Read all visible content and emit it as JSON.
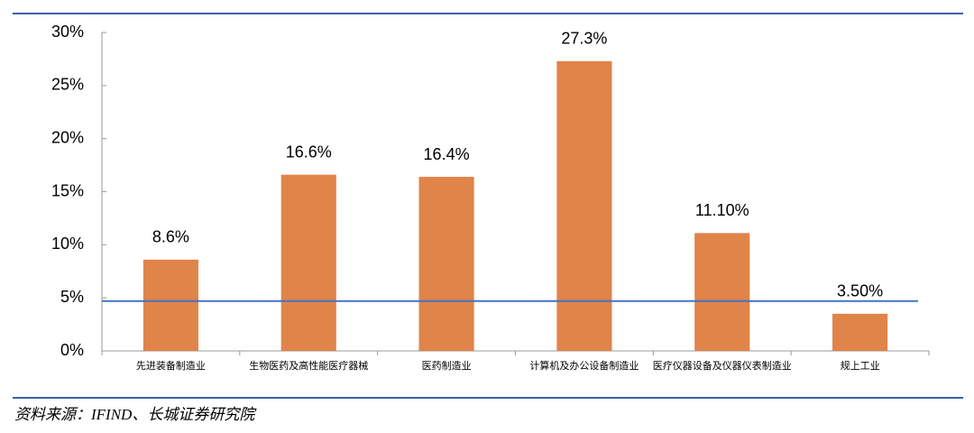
{
  "chart_data": {
    "type": "bar",
    "categories": [
      "先进装备制造业",
      "生物医药及高性能医疗器械",
      "医药制造业",
      "计算机及办公设备制造业",
      "医疗仪器设备及仪器仪表制造业",
      "规上工业"
    ],
    "values": [
      8.6,
      16.6,
      16.4,
      27.3,
      11.1,
      3.5
    ],
    "value_labels": [
      "8.6%",
      "16.6%",
      "16.4%",
      "27.3%",
      "11.10%",
      "3.50%"
    ],
    "color": "#e0844a",
    "hline": 4.7,
    "hline_color": "#4472c4",
    "ylim": [
      0,
      30
    ],
    "yticks": [
      {
        "value": 0,
        "label": "0%"
      },
      {
        "value": 5,
        "label": "5%"
      },
      {
        "value": 10,
        "label": "10%"
      },
      {
        "value": 15,
        "label": "15%"
      },
      {
        "value": 20,
        "label": "20%"
      },
      {
        "value": 25,
        "label": "25%"
      },
      {
        "value": 30,
        "label": "30%"
      }
    ],
    "source": "资料来源：IFIND、长城证券研究院"
  }
}
